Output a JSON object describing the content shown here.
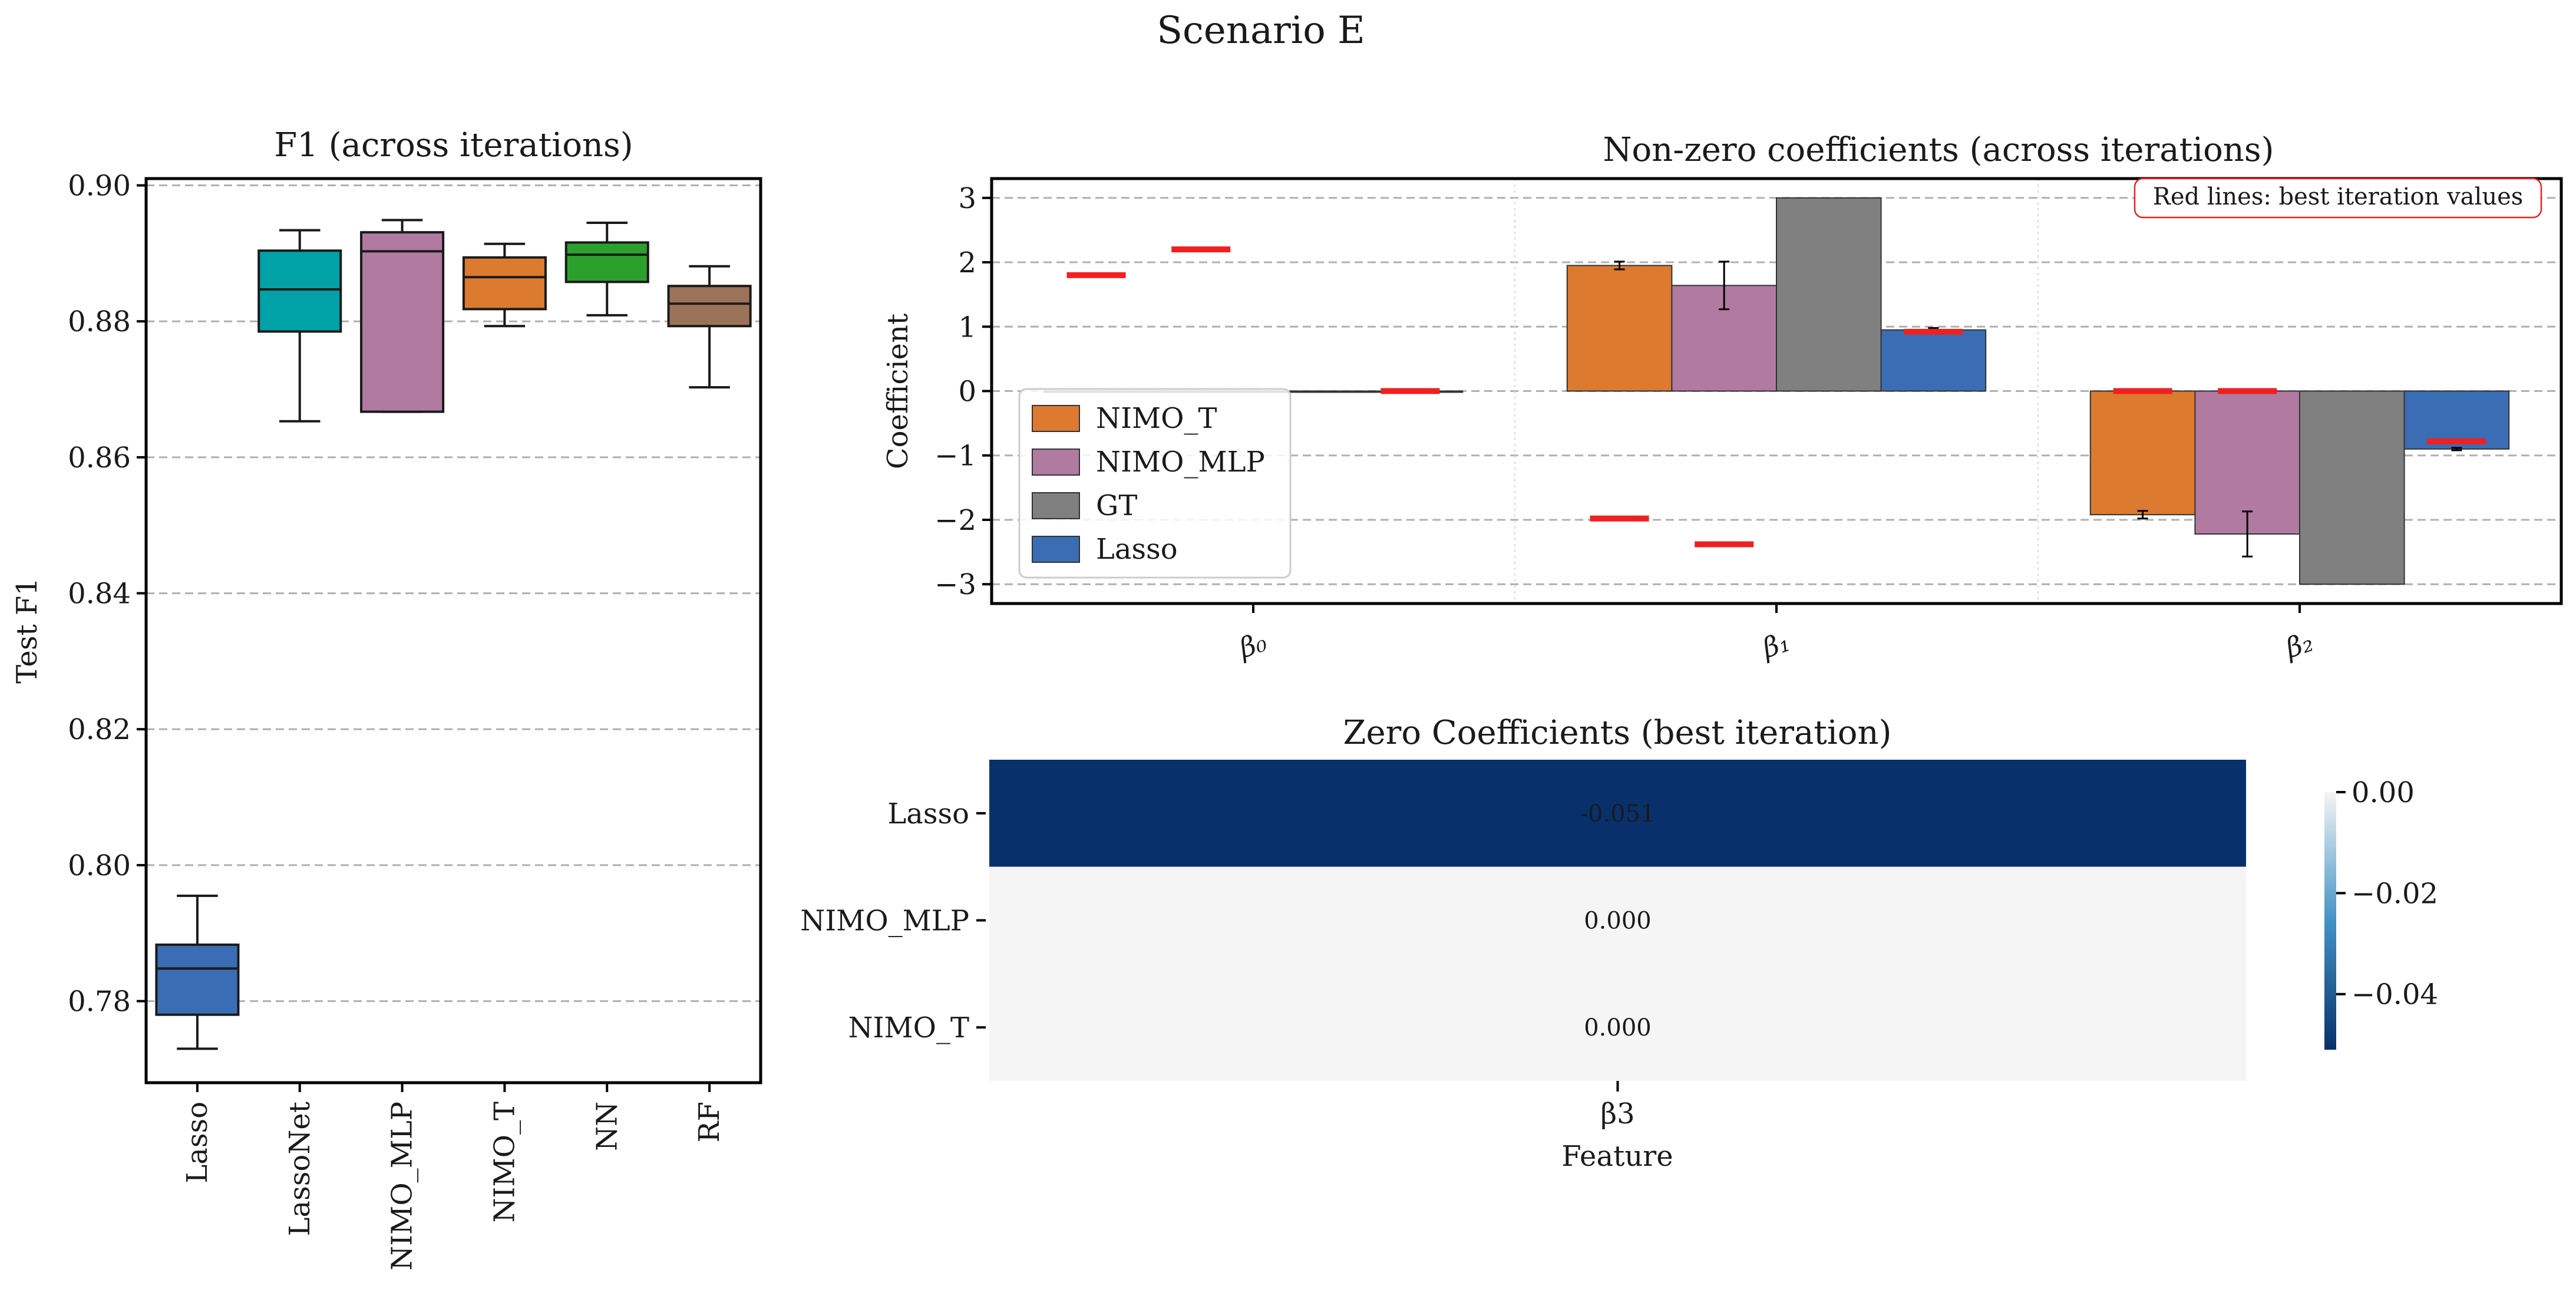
{
  "figure": {
    "title": "Scenario E"
  },
  "colors": {
    "Lasso": "#3b6db5",
    "LassoNet": "#00a2a7",
    "NIMO_MLP": "#b07aa1",
    "NIMO_T": "#dc7a30",
    "NN": "#2ca02c",
    "RF": "#9c7358",
    "GT": "#808080",
    "best": "#f02020"
  },
  "chart_data": [
    {
      "type": "box",
      "title": "F1 (across iterations)",
      "xlabel": "",
      "ylabel": "Test F1",
      "ylim": [
        0.768,
        0.901
      ],
      "yticks": [
        0.78,
        0.8,
        0.82,
        0.84,
        0.86,
        0.88,
        0.9
      ],
      "ytick_labels": [
        "0.78",
        "0.80",
        "0.82",
        "0.84",
        "0.86",
        "0.88",
        "0.90"
      ],
      "grid": "y",
      "categories": [
        "Lasso",
        "LassoNet",
        "NIMO_MLP",
        "NIMO_T",
        "NN",
        "RF"
      ],
      "boxes": [
        {
          "name": "Lasso",
          "whisker_low": 0.773,
          "q1": 0.778,
          "median": 0.7848,
          "q3": 0.7883,
          "whisker_high": 0.7955
        },
        {
          "name": "LassoNet",
          "whisker_low": 0.8653,
          "q1": 0.8785,
          "median": 0.8847,
          "q3": 0.8904,
          "whisker_high": 0.8934
        },
        {
          "name": "NIMO_MLP",
          "whisker_low": 0.8667,
          "q1": 0.8667,
          "median": 0.8903,
          "q3": 0.8931,
          "whisker_high": 0.8949
        },
        {
          "name": "NIMO_T",
          "whisker_low": 0.8793,
          "q1": 0.8818,
          "median": 0.8865,
          "q3": 0.8894,
          "whisker_high": 0.8914
        },
        {
          "name": "NN",
          "whisker_low": 0.8809,
          "q1": 0.8858,
          "median": 0.8898,
          "q3": 0.8916,
          "whisker_high": 0.8945
        },
        {
          "name": "RF",
          "whisker_low": 0.8703,
          "q1": 0.8793,
          "median": 0.8826,
          "q3": 0.8852,
          "whisker_high": 0.8881
        }
      ]
    },
    {
      "type": "bar",
      "title": "Non-zero coefficients (across iterations)",
      "xlabel": "",
      "ylabel": "Coefficient",
      "ylim": [
        -3.3,
        3.3
      ],
      "yticks": [
        -3,
        -2,
        -1,
        0,
        1,
        2,
        3
      ],
      "ytick_labels": [
        "−3",
        "−2",
        "−1",
        "0",
        "1",
        "2",
        "3"
      ],
      "grid": "y",
      "categories": [
        "β₀",
        "β₁",
        "β₂"
      ],
      "series": [
        {
          "name": "NIMO_T",
          "values": [
            -0.02,
            1.95,
            -1.92
          ],
          "err": [
            0.0,
            0.06,
            0.06
          ],
          "best": [
            1.8,
            -1.98,
            0.0
          ]
        },
        {
          "name": "NIMO_MLP",
          "values": [
            -0.02,
            1.64,
            -2.22
          ],
          "err": [
            0.0,
            0.37,
            0.35
          ],
          "best": [
            2.2,
            -2.38,
            0.0
          ]
        },
        {
          "name": "GT",
          "values": [
            0.0,
            3.0,
            -3.0
          ],
          "err": [
            0.0,
            0.0,
            0.0
          ],
          "best": null
        },
        {
          "name": "Lasso",
          "values": [
            0.0,
            0.95,
            -0.9
          ],
          "err": [
            0.0,
            0.03,
            0.02
          ],
          "best": [
            0.0,
            0.92,
            -0.78
          ]
        }
      ],
      "legend_position": "lower-left",
      "annotation": "Red lines: best iteration values"
    },
    {
      "type": "heatmap",
      "title": "Zero Coefficients (best iteration)",
      "xlabel": "Feature",
      "ylabel": "",
      "columns": [
        "β3"
      ],
      "rows": [
        "Lasso",
        "NIMO_MLP",
        "NIMO_T"
      ],
      "values": [
        [
          -0.051
        ],
        [
          0.0
        ],
        [
          0.0
        ]
      ],
      "value_labels": [
        "-0.051",
        "0.000",
        "0.000"
      ],
      "colorbar": {
        "range": [
          -0.051,
          0.0
        ],
        "ticks": [
          0.0,
          -0.02,
          -0.04
        ],
        "tick_labels": [
          "0.00",
          "−0.02",
          "−0.04"
        ],
        "colormap": "Blues_r"
      }
    }
  ]
}
